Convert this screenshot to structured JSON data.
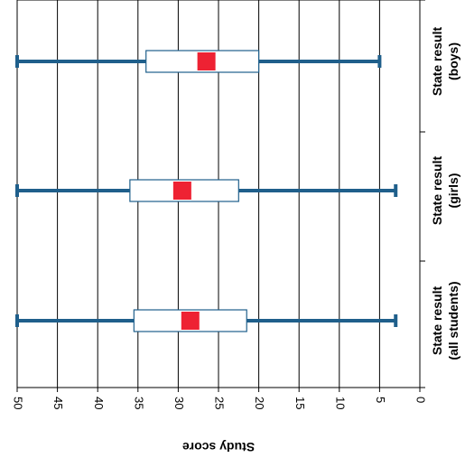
{
  "chart_data": {
    "type": "boxplot",
    "orientation": "horizontal-flipped",
    "ylabel": "Study score",
    "ylim": [
      0,
      50
    ],
    "ticks": [
      {
        "value": 50,
        "label": "50"
      },
      {
        "value": 45,
        "label": "45"
      },
      {
        "value": 40,
        "label": "40"
      },
      {
        "value": 35,
        "label": "35"
      },
      {
        "value": 30,
        "label": "30"
      },
      {
        "value": 25,
        "label": "25"
      },
      {
        "value": 20,
        "label": "20"
      },
      {
        "value": 15,
        "label": "15"
      },
      {
        "value": 10,
        "label": "10"
      },
      {
        "value": 5,
        "label": "5"
      },
      {
        "value": 0,
        "label": "0"
      }
    ],
    "grid": true,
    "colors": {
      "whisker": "#1f5f8b",
      "mean_marker": "#ee2233",
      "box_fill": "#ffffff",
      "box_stroke": "#1f5f8b"
    },
    "categories": [
      {
        "line1": "State result",
        "line2": "(boys)",
        "min": 5,
        "q1": 20,
        "q3": 34,
        "max": 50,
        "mean": 26.5
      },
      {
        "line1": "State result",
        "line2": "(girls)",
        "min": 3,
        "q1": 22.5,
        "q3": 36,
        "max": 50,
        "mean": 29.5
      },
      {
        "line1": "State result",
        "line2": "(all students)",
        "min": 3,
        "q1": 21.5,
        "q3": 35.5,
        "max": 50,
        "mean": 28.5
      }
    ]
  }
}
